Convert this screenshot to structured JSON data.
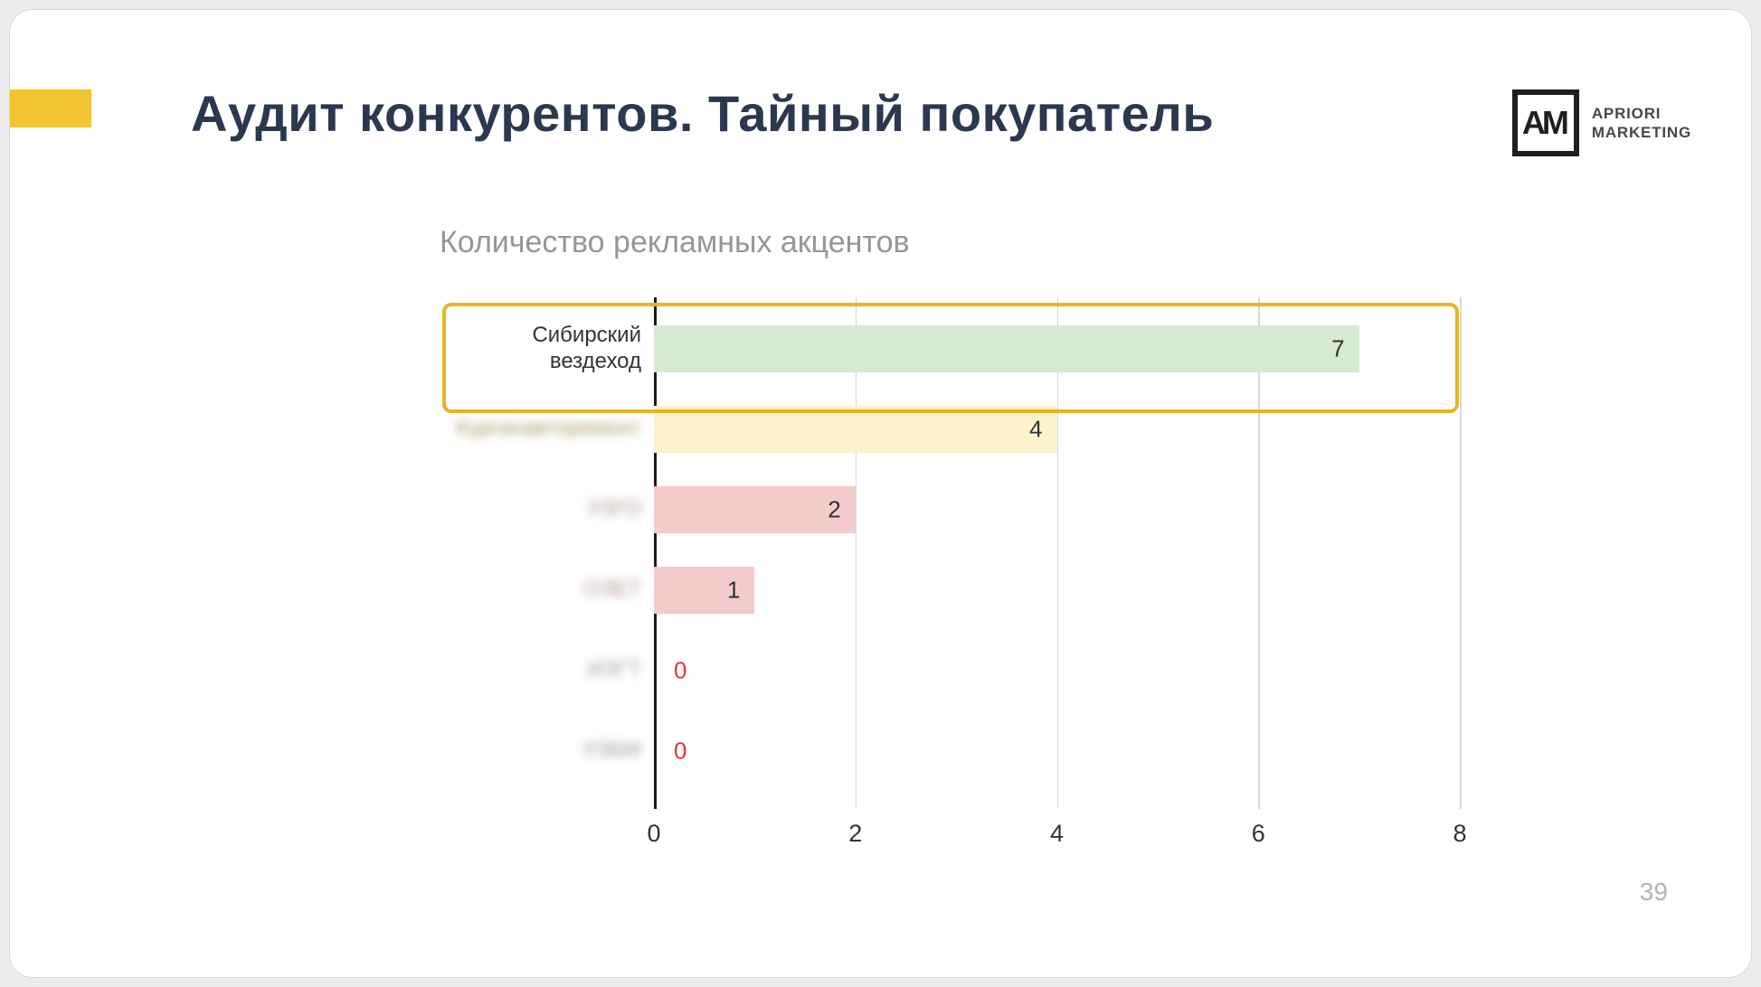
{
  "slide": {
    "title": "Аудит конкурентов. Тайный покупатель",
    "page_number": "39",
    "accent_color": "#F3C431"
  },
  "logo": {
    "monogram": "AM",
    "line1": "APRIORI",
    "line2": "MARKETING"
  },
  "chart_data": {
    "type": "bar",
    "orientation": "horizontal",
    "title": "Количество рекламных акцентов",
    "categories": [
      "Сибирский вездеход",
      "Курганавторемонт",
      "УЗГО",
      "ОЗЕТ",
      "ИЗГТ",
      "УЗБМ"
    ],
    "values": [
      7,
      4,
      2,
      1,
      0,
      0
    ],
    "xlim": [
      0,
      8
    ],
    "x_ticks": [
      0,
      2,
      4,
      6,
      8
    ],
    "bar_colors": [
      "#d8e9d2",
      "#fdf2cc",
      "#f4cbcb",
      "#f4cbcb",
      null,
      null
    ],
    "value_label_colors": [
      "#333333",
      "#333333",
      "#333333",
      "#333333",
      "#dd3a34",
      "#dd3a34"
    ],
    "category_label_colors": [
      "#333333",
      "#ab9c60",
      "#b08f8f",
      "#b08f8f",
      "#9a9a9a",
      "#9a9a9a"
    ],
    "highlighted_category": "Сибирский вездеход",
    "highlight_border_color": "#EBB41F",
    "grid": true,
    "legend": false
  }
}
